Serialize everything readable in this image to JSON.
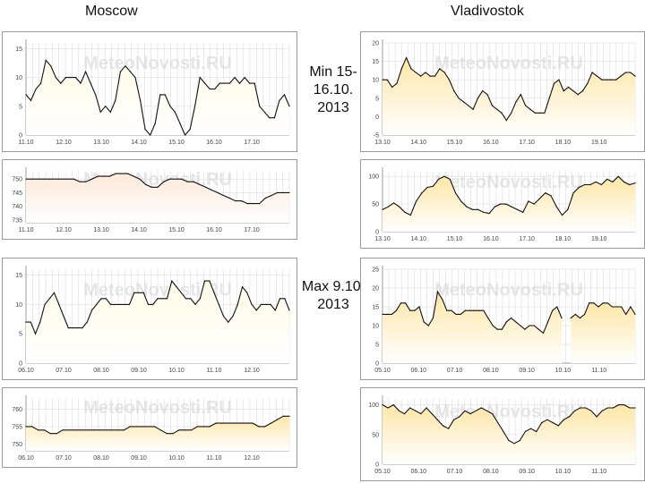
{
  "headers": {
    "left": "Moscow",
    "right": "Vladivostok"
  },
  "middle": {
    "min_label": "Min 15-16.10. 2013",
    "max_label": "Max 9.10. 2013"
  },
  "watermark": "MeteoNovosti.RU",
  "colors": {
    "moscow_fill": "#fffbe6",
    "vlad_fill": "#fde6a6",
    "line": "#111111",
    "grid": "#d6d6d6",
    "pressure_fill": "#fde9d9"
  },
  "chart_data": [
    {
      "id": "moscow_min_temp",
      "type": "area",
      "title": "",
      "xlabel": "",
      "ylabel": "",
      "x_ticks": [
        "11.10",
        "12.10",
        "13.10",
        "14.10",
        "15.10",
        "16.10",
        "17.10"
      ],
      "y_ticks": [
        "0",
        "5",
        "10",
        "15"
      ],
      "ylim": [
        0,
        16
      ],
      "values": [
        7,
        6,
        8,
        9,
        13,
        12,
        10,
        9,
        10,
        10,
        10,
        9,
        11,
        9,
        7,
        4,
        5,
        4,
        6,
        11,
        12,
        11,
        10,
        6,
        1,
        0,
        2,
        7,
        7,
        5,
        4,
        2,
        0,
        1,
        5,
        10,
        9,
        8,
        8,
        9,
        9,
        9,
        10,
        9,
        10,
        9,
        9,
        5,
        4,
        3,
        3,
        6,
        7,
        5
      ]
    },
    {
      "id": "moscow_min_pressure",
      "type": "area",
      "x_ticks": [
        "11.10",
        "12.10",
        "13.10",
        "14.10",
        "15.10",
        "16.10",
        "17.10"
      ],
      "y_ticks": [
        "750",
        "745",
        "740",
        "735"
      ],
      "ylim": [
        734,
        753
      ],
      "values": [
        750,
        750,
        750,
        750,
        750,
        750,
        750,
        750,
        750,
        749,
        749,
        750,
        751,
        751,
        751,
        752,
        752,
        752,
        751,
        750,
        748,
        747,
        747,
        749,
        750,
        750,
        750,
        749,
        749,
        748,
        747,
        746,
        745,
        744,
        743,
        742,
        742,
        741,
        741,
        741,
        743,
        744,
        745,
        745,
        745
      ]
    },
    {
      "id": "vlad_min_temp",
      "type": "area",
      "x_ticks": [
        "13.10",
        "14.10",
        "15.10",
        "16.10",
        "17.10",
        "18.10",
        "19.10"
      ],
      "y_ticks": [
        "-5",
        "0",
        "5",
        "10",
        "15",
        "20"
      ],
      "ylim": [
        -5,
        20
      ],
      "values": [
        10,
        10,
        8,
        9,
        13,
        16,
        13,
        12,
        11,
        12,
        11,
        11,
        13,
        12,
        10,
        7,
        5,
        4,
        3,
        2,
        5,
        7,
        6,
        3,
        2,
        1,
        -1,
        1,
        4,
        6,
        3,
        2,
        1,
        1,
        1,
        5,
        9,
        10,
        7,
        8,
        7,
        6,
        7,
        9,
        12,
        11,
        10,
        10,
        10,
        10,
        11,
        12,
        12,
        11
      ]
    },
    {
      "id": "vlad_min_humidity",
      "type": "area",
      "x_ticks": [
        "13.10",
        "14.10",
        "15.10",
        "16.10",
        "17.10",
        "18.10",
        "19.10"
      ],
      "y_ticks": [
        "0",
        "50",
        "100"
      ],
      "ylim": [
        0,
        110
      ],
      "values": [
        40,
        45,
        52,
        45,
        35,
        30,
        55,
        70,
        80,
        82,
        95,
        100,
        95,
        70,
        55,
        45,
        40,
        40,
        35,
        33,
        45,
        50,
        50,
        45,
        40,
        35,
        55,
        50,
        60,
        70,
        65,
        45,
        30,
        40,
        70,
        80,
        85,
        85,
        90,
        85,
        95,
        90,
        100,
        90,
        85,
        88
      ]
    },
    {
      "id": "moscow_max_temp",
      "type": "area",
      "x_ticks": [
        "06.10",
        "07.10",
        "08.10",
        "09.10",
        "10.10",
        "11.10",
        "12.10"
      ],
      "y_ticks": [
        "0",
        "5",
        "10",
        "15"
      ],
      "ylim": [
        0,
        16
      ],
      "values": [
        7,
        7,
        5,
        7,
        10,
        11,
        12,
        10,
        8,
        6,
        6,
        6,
        6,
        7,
        9,
        10,
        11,
        11,
        10,
        10,
        10,
        10,
        10,
        12,
        12,
        12,
        10,
        10,
        11,
        11,
        11,
        14,
        13,
        12,
        11,
        11,
        10,
        11,
        14,
        14,
        12,
        10,
        8,
        7,
        8,
        10,
        13,
        12,
        10,
        9,
        10,
        10,
        10,
        9,
        11,
        11,
        9
      ]
    },
    {
      "id": "moscow_max_pressure",
      "type": "area",
      "x_ticks": [
        "06.10",
        "07.10",
        "08.10",
        "09.10",
        "10.10",
        "11.10",
        "12.10"
      ],
      "y_ticks": [
        "760",
        "755",
        "750"
      ],
      "ylim": [
        748,
        763
      ],
      "values": [
        755,
        755,
        754,
        754,
        753,
        753,
        754,
        754,
        754,
        754,
        754,
        754,
        754,
        754,
        754,
        754,
        754,
        755,
        755,
        755,
        755,
        755,
        754,
        753,
        753,
        754,
        754,
        754,
        755,
        755,
        755,
        756,
        756,
        756,
        756,
        756,
        756,
        756,
        755,
        755,
        756,
        757,
        758,
        758
      ]
    },
    {
      "id": "vlad_max_temp",
      "type": "area",
      "x_ticks": [
        "05.10",
        "06.10",
        "07.10",
        "08.10",
        "09.10",
        "10.10",
        "11.10"
      ],
      "y_ticks": [
        "0",
        "5",
        "10",
        "15",
        "20",
        "25"
      ],
      "ylim": [
        0,
        25
      ],
      "values": [
        13,
        13,
        13,
        14,
        16,
        16,
        14,
        14,
        15,
        11,
        10,
        12,
        19,
        17,
        14,
        14,
        13,
        13,
        14,
        14,
        14,
        14,
        14,
        12,
        10,
        9,
        9,
        11,
        12,
        11,
        10,
        9,
        10,
        10,
        9,
        8,
        11,
        14,
        15,
        12,
        null,
        12,
        13,
        12,
        13,
        16,
        16,
        15,
        16,
        16,
        15,
        15,
        15,
        13,
        15,
        13
      ]
    },
    {
      "id": "vlad_max_humidity",
      "type": "area",
      "x_ticks": [
        "05.10",
        "06.10",
        "07.10",
        "08.10",
        "09.10",
        "10.10",
        "11.10"
      ],
      "y_ticks": [
        "0",
        "50",
        "100"
      ],
      "ylim": [
        0,
        110
      ],
      "values": [
        100,
        95,
        100,
        90,
        85,
        95,
        90,
        85,
        95,
        85,
        75,
        65,
        60,
        75,
        80,
        90,
        85,
        90,
        95,
        90,
        85,
        70,
        55,
        40,
        35,
        40,
        55,
        60,
        55,
        70,
        75,
        70,
        65,
        75,
        80,
        90,
        95,
        95,
        90,
        80,
        90,
        95,
        95,
        100,
        100,
        95,
        95
      ]
    }
  ]
}
